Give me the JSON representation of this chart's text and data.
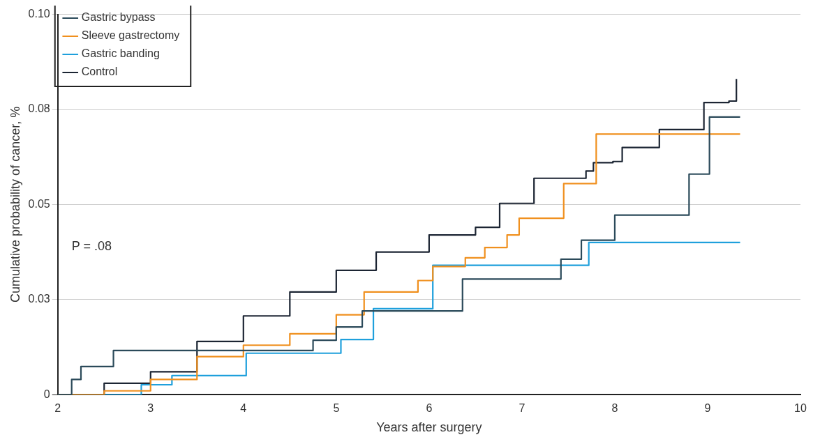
{
  "chart_data": {
    "type": "step",
    "xlabel": "Years after surgery",
    "ylabel": "Cumulative probability of cancer, %",
    "xlim": [
      2,
      10
    ],
    "xticks": [
      2,
      3,
      4,
      5,
      6,
      7,
      8,
      9,
      10
    ],
    "ylim": [
      0,
      0.1
    ],
    "yticks": [
      0,
      {
        "value": 0.025,
        "label": "0.03"
      },
      {
        "value": 0.05,
        "label": "0.05"
      },
      {
        "value": 0.075,
        "label": "0.08"
      },
      {
        "value": 0.1,
        "label": "0.10"
      }
    ],
    "grid": "y",
    "legend": "top left",
    "marker": "none",
    "line_style": "solid",
    "annotations": [
      "P = .08"
    ],
    "series": [
      {
        "name": "Gastric bypass",
        "color": "#2b4a5a",
        "x": [
          2,
          2.15,
          2.25,
          2.6,
          4.75,
          5.0,
          5.28,
          6.36,
          7.42,
          7.64,
          8.0,
          8.8,
          9.02,
          9.35
        ],
        "values": [
          0,
          0.004,
          0.0074,
          0.0116,
          0.0143,
          0.0178,
          0.022,
          0.0304,
          0.0356,
          0.0406,
          0.0472,
          0.058,
          0.073,
          0.073
        ]
      },
      {
        "name": "Sleeve gastrectomy",
        "color": "#f0901e",
        "x": [
          2,
          2.5,
          3,
          3.5,
          4,
          4.5,
          5,
          5.3,
          5.88,
          6.04,
          6.39,
          6.6,
          6.84,
          6.97,
          7.45,
          7.8,
          9.35
        ],
        "values": [
          0,
          0.001,
          0.004,
          0.01,
          0.013,
          0.016,
          0.021,
          0.027,
          0.03,
          0.0337,
          0.036,
          0.0387,
          0.042,
          0.0464,
          0.0555,
          0.0685,
          0.0685
        ]
      },
      {
        "name": "Gastric banding",
        "color": "#1fa0dc",
        "x": [
          2,
          2.9,
          3.23,
          4.03,
          5.05,
          5.4,
          6.04,
          7.72,
          9.35
        ],
        "values": [
          0,
          0.0026,
          0.005,
          0.0109,
          0.0145,
          0.0226,
          0.034,
          0.04,
          0.04
        ]
      },
      {
        "name": "Control",
        "color": "#1c2533",
        "x": [
          2,
          2.5,
          3,
          3.5,
          4,
          4.5,
          5,
          5.43,
          6,
          6.5,
          6.76,
          7.13,
          7.69,
          7.77,
          7.98,
          8.08,
          8.48,
          8.96,
          9.23,
          9.31
        ],
        "values": [
          0,
          0.003,
          0.006,
          0.014,
          0.0207,
          0.027,
          0.0327,
          0.0375,
          0.042,
          0.044,
          0.0503,
          0.0569,
          0.0588,
          0.061,
          0.0613,
          0.065,
          0.0697,
          0.0768,
          0.0772,
          0.083
        ]
      }
    ]
  }
}
